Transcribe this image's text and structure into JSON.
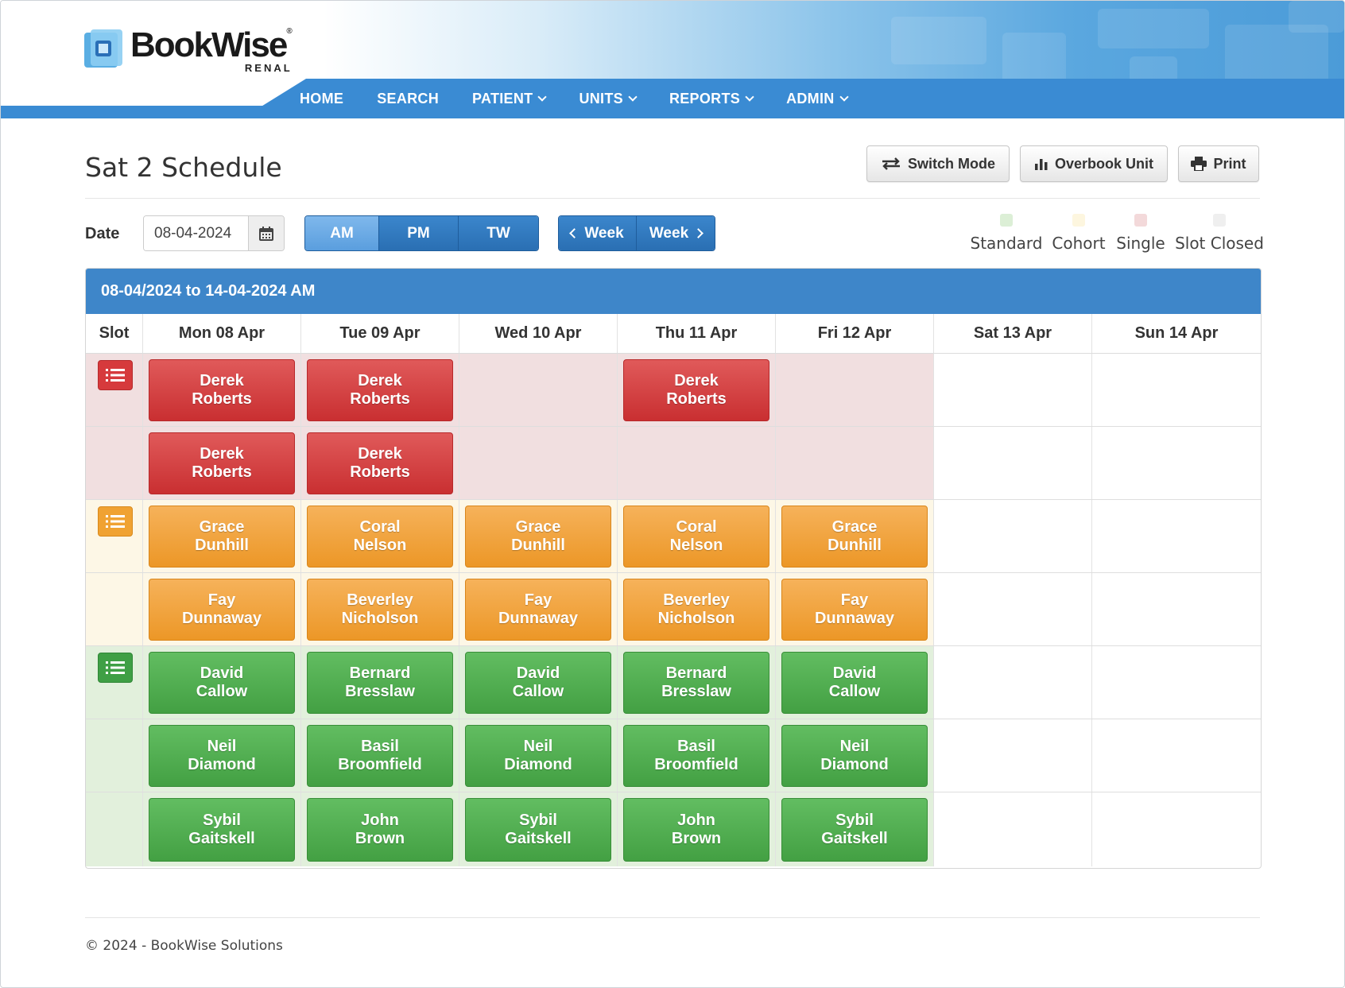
{
  "app": {
    "logo_name": "BookWise",
    "logo_sub": "RENAL",
    "logo_reg": "®"
  },
  "nav": [
    {
      "label": "HOME",
      "dropdown": false
    },
    {
      "label": "SEARCH",
      "dropdown": false
    },
    {
      "label": "PATIENT",
      "dropdown": true
    },
    {
      "label": "UNITS",
      "dropdown": true
    },
    {
      "label": "REPORTS",
      "dropdown": true
    },
    {
      "label": "ADMIN",
      "dropdown": true
    }
  ],
  "page": {
    "title": "Sat 2 Schedule"
  },
  "toolbar": {
    "switch_mode": "Switch Mode",
    "overbook_unit": "Overbook Unit",
    "print": "Print"
  },
  "controls": {
    "date_label": "Date",
    "date_value": "08-04-2024",
    "sessions": [
      {
        "label": "AM",
        "active": true
      },
      {
        "label": "PM",
        "active": false
      },
      {
        "label": "TW",
        "active": false
      }
    ],
    "week_prev": "Week",
    "week_next": "Week"
  },
  "legend": [
    {
      "label": "Standard",
      "color": "#dcefd6"
    },
    {
      "label": "Cohort",
      "color": "#fdf6df"
    },
    {
      "label": "Single",
      "color": "#f3d9da"
    },
    {
      "label": "Slot Closed",
      "color": "#efefef"
    }
  ],
  "schedule": {
    "range_title": "08-04/2024 to 14-04-2024 AM",
    "slot_header": "Slot",
    "days": [
      "Mon 08 Apr",
      "Tue 09 Apr",
      "Wed 10 Apr",
      "Thu 11 Apr",
      "Fri 12 Apr",
      "Sat 13 Apr",
      "Sun 14 Apr"
    ],
    "rows": [
      {
        "group": "red",
        "slot_icon": true,
        "cells": [
          [
            "Derek",
            "Roberts"
          ],
          [
            "Derek",
            "Roberts"
          ],
          null,
          [
            "Derek",
            "Roberts"
          ],
          null,
          "empty",
          "empty"
        ]
      },
      {
        "group": "red",
        "slot_icon": false,
        "cells": [
          [
            "Derek",
            "Roberts"
          ],
          [
            "Derek",
            "Roberts"
          ],
          null,
          null,
          null,
          "empty",
          "empty"
        ]
      },
      {
        "group": "orange",
        "slot_icon": true,
        "cells": [
          [
            "Grace",
            "Dunhill"
          ],
          [
            "Coral",
            "Nelson"
          ],
          [
            "Grace",
            "Dunhill"
          ],
          [
            "Coral",
            "Nelson"
          ],
          [
            "Grace",
            "Dunhill"
          ],
          "empty",
          "empty"
        ]
      },
      {
        "group": "orange",
        "slot_icon": false,
        "cells": [
          [
            "Fay",
            "Dunnaway"
          ],
          [
            "Beverley",
            "Nicholson"
          ],
          [
            "Fay",
            "Dunnaway"
          ],
          [
            "Beverley",
            "Nicholson"
          ],
          [
            "Fay",
            "Dunnaway"
          ],
          "empty",
          "empty"
        ]
      },
      {
        "group": "green",
        "slot_icon": true,
        "cells": [
          [
            "David",
            "Callow"
          ],
          [
            "Bernard",
            "Bresslaw"
          ],
          [
            "David",
            "Callow"
          ],
          [
            "Bernard",
            "Bresslaw"
          ],
          [
            "David",
            "Callow"
          ],
          "empty",
          "empty"
        ]
      },
      {
        "group": "green",
        "slot_icon": false,
        "cells": [
          [
            "Neil",
            "Diamond"
          ],
          [
            "Basil",
            "Broomfield"
          ],
          [
            "Neil",
            "Diamond"
          ],
          [
            "Basil",
            "Broomfield"
          ],
          [
            "Neil",
            "Diamond"
          ],
          "empty",
          "empty"
        ]
      },
      {
        "group": "green",
        "slot_icon": false,
        "cells": [
          [
            "Sybil",
            "Gaitskell"
          ],
          [
            "John",
            "Brown"
          ],
          [
            "Sybil",
            "Gaitskell"
          ],
          [
            "John",
            "Brown"
          ],
          [
            "Sybil",
            "Gaitskell"
          ],
          "empty",
          "empty"
        ]
      }
    ]
  },
  "footer": {
    "text": "© 2024  - BookWise Solutions"
  }
}
